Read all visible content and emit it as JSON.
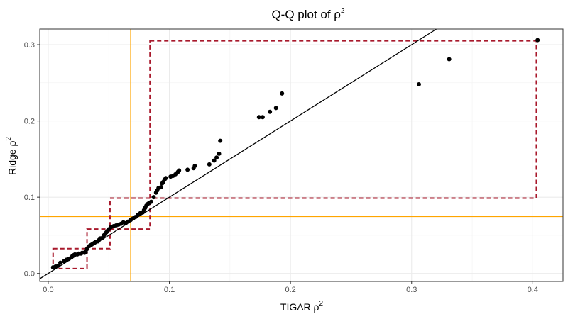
{
  "chart_data": {
    "type": "scatter",
    "title": {
      "main": "Q-Q plot of ρ",
      "sup": "2"
    },
    "xlabel": {
      "main": "TIGAR ρ",
      "sup": "2"
    },
    "ylabel": {
      "main": "Ridge ρ",
      "sup": "2"
    },
    "xlim": [
      -0.007,
      0.425
    ],
    "ylim": [
      -0.0105,
      0.3205
    ],
    "x_ticks": [
      0.0,
      0.1,
      0.2,
      0.3,
      0.4
    ],
    "x_tick_labels": [
      "0.0",
      "0.1",
      "0.2",
      "0.3",
      "0.4"
    ],
    "y_ticks": [
      0.0,
      0.1,
      0.2,
      0.3
    ],
    "y_tick_labels": [
      "0.0",
      "0.1",
      "0.2",
      "0.3"
    ],
    "grid": true,
    "reference_line": {
      "slope": 1,
      "intercept": 0,
      "color": "#000000"
    },
    "vline_x": 0.068,
    "hline_y": 0.0745,
    "threshold_color": "#ffa500",
    "box_color": "#a8182b",
    "boxes": [
      {
        "x0": 0.004,
        "x1": 0.032,
        "y0": 0.0063,
        "y1": 0.0325
      },
      {
        "x0": 0.032,
        "x1": 0.051,
        "y0": 0.0325,
        "y1": 0.0582
      },
      {
        "x0": 0.051,
        "x1": 0.084,
        "y0": 0.0582,
        "y1": 0.0987
      },
      {
        "x0": 0.084,
        "x1": 0.403,
        "y0": 0.0987,
        "y1": 0.305
      }
    ],
    "points": [
      [
        0.004,
        0.008
      ],
      [
        0.006,
        0.009
      ],
      [
        0.008,
        0.01
      ],
      [
        0.01,
        0.014
      ],
      [
        0.013,
        0.016
      ],
      [
        0.015,
        0.018
      ],
      [
        0.017,
        0.019
      ],
      [
        0.019,
        0.021
      ],
      [
        0.02,
        0.023
      ],
      [
        0.021,
        0.024
      ],
      [
        0.022,
        0.025
      ],
      [
        0.024,
        0.025
      ],
      [
        0.025,
        0.026
      ],
      [
        0.027,
        0.026
      ],
      [
        0.028,
        0.027
      ],
      [
        0.03,
        0.027
      ],
      [
        0.031,
        0.028
      ],
      [
        0.032,
        0.032
      ],
      [
        0.034,
        0.036
      ],
      [
        0.035,
        0.037
      ],
      [
        0.036,
        0.038
      ],
      [
        0.038,
        0.04
      ],
      [
        0.039,
        0.041
      ],
      [
        0.041,
        0.042
      ],
      [
        0.042,
        0.044
      ],
      [
        0.043,
        0.046
      ],
      [
        0.045,
        0.047
      ],
      [
        0.046,
        0.05
      ],
      [
        0.047,
        0.052
      ],
      [
        0.048,
        0.054
      ],
      [
        0.049,
        0.056
      ],
      [
        0.05,
        0.058
      ],
      [
        0.052,
        0.061
      ],
      [
        0.054,
        0.062
      ],
      [
        0.056,
        0.063
      ],
      [
        0.058,
        0.064
      ],
      [
        0.06,
        0.065
      ],
      [
        0.062,
        0.067
      ],
      [
        0.064,
        0.066
      ],
      [
        0.066,
        0.068
      ],
      [
        0.068,
        0.07
      ],
      [
        0.07,
        0.072
      ],
      [
        0.072,
        0.074
      ],
      [
        0.074,
        0.077
      ],
      [
        0.076,
        0.079
      ],
      [
        0.078,
        0.08
      ],
      [
        0.079,
        0.083
      ],
      [
        0.08,
        0.086
      ],
      [
        0.081,
        0.089
      ],
      [
        0.082,
        0.091
      ],
      [
        0.083,
        0.092
      ],
      [
        0.085,
        0.094
      ],
      [
        0.087,
        0.1
      ],
      [
        0.089,
        0.106
      ],
      [
        0.09,
        0.109
      ],
      [
        0.091,
        0.112
      ],
      [
        0.093,
        0.113
      ],
      [
        0.094,
        0.118
      ],
      [
        0.095,
        0.12
      ],
      [
        0.096,
        0.123
      ],
      [
        0.097,
        0.125
      ],
      [
        0.101,
        0.127
      ],
      [
        0.103,
        0.128
      ],
      [
        0.105,
        0.13
      ],
      [
        0.107,
        0.133
      ],
      [
        0.108,
        0.135
      ],
      [
        0.115,
        0.136
      ],
      [
        0.12,
        0.138
      ],
      [
        0.121,
        0.141
      ],
      [
        0.133,
        0.143
      ],
      [
        0.137,
        0.148
      ],
      [
        0.139,
        0.152
      ],
      [
        0.141,
        0.157
      ],
      [
        0.142,
        0.174
      ],
      [
        0.174,
        0.205
      ],
      [
        0.177,
        0.205
      ],
      [
        0.183,
        0.212
      ],
      [
        0.188,
        0.217
      ],
      [
        0.193,
        0.236
      ],
      [
        0.306,
        0.248
      ],
      [
        0.331,
        0.281
      ],
      [
        0.404,
        0.306
      ]
    ]
  }
}
